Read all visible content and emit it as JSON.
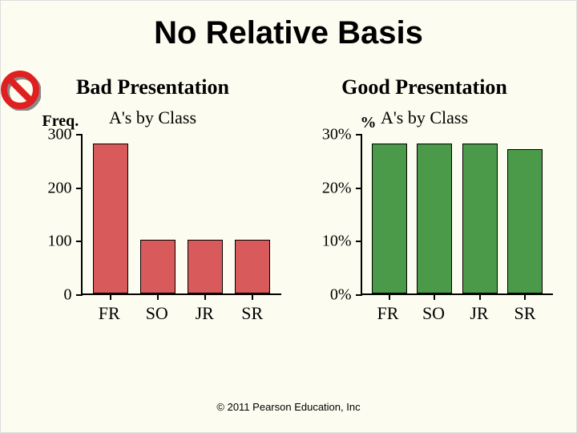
{
  "title": "No Relative Basis",
  "footer": "© 2011 Pearson Education, Inc",
  "bad": {
    "header": "Bad Presentation",
    "chart_title": "A's by Class",
    "axis_label": "Freq.",
    "type": "bar",
    "ylim": [
      0,
      300
    ],
    "y_ticks": [
      {
        "value": 0,
        "label": "0"
      },
      {
        "value": 100,
        "label": "100"
      },
      {
        "value": 200,
        "label": "200"
      },
      {
        "value": 300,
        "label": "300"
      }
    ],
    "categories": [
      "FR",
      "SO",
      "JR",
      "SR"
    ],
    "values": [
      280,
      100,
      100,
      100
    ],
    "bar_color": "#d85a5a",
    "bar_border": "#000000",
    "fontsize_title": 22,
    "fontsize_ticks": 20,
    "fontsize_labels": 22
  },
  "good": {
    "header": "Good Presentation",
    "chart_title": "A's by Class",
    "axis_label": "%",
    "type": "bar",
    "ylim": [
      0,
      30
    ],
    "y_ticks": [
      {
        "value": 0,
        "label": "0%"
      },
      {
        "value": 10,
        "label": "10%"
      },
      {
        "value": 20,
        "label": "20%"
      },
      {
        "value": 30,
        "label": "30%"
      }
    ],
    "categories": [
      "FR",
      "SO",
      "JR",
      "SR"
    ],
    "values": [
      28,
      28,
      28,
      27
    ],
    "bar_color": "#4a9a4a",
    "bar_border": "#000000",
    "fontsize_title": 22,
    "fontsize_ticks": 20,
    "fontsize_labels": 22
  },
  "no_icon": {
    "circle_color": "#e02020",
    "shadow_color": "#888888"
  },
  "background_color": "#fdfcf0"
}
